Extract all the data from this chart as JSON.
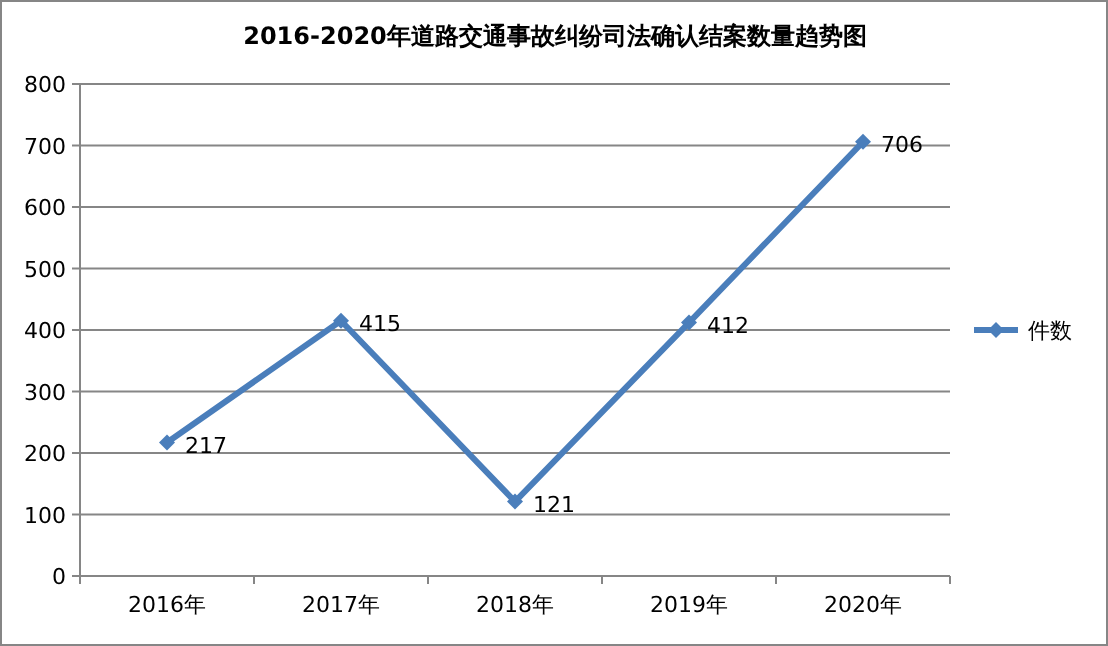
{
  "chart_data": {
    "type": "line",
    "title": "2016-2020年道路交通事故纠纷司法确认结案数量趋势图",
    "categories": [
      "2016年",
      "2017年",
      "2018年",
      "2019年",
      "2020年"
    ],
    "series": [
      {
        "name": "件数",
        "color": "#4a7ebb",
        "values": [
          217,
          415,
          121,
          412,
          706
        ]
      }
    ],
    "ylim": [
      0,
      800
    ],
    "yticks": [
      0,
      100,
      200,
      300,
      400,
      500,
      600,
      700,
      800
    ],
    "grid": "y",
    "legend": "right",
    "marker": "diamond",
    "line_style": "solid",
    "data_labels": true
  }
}
